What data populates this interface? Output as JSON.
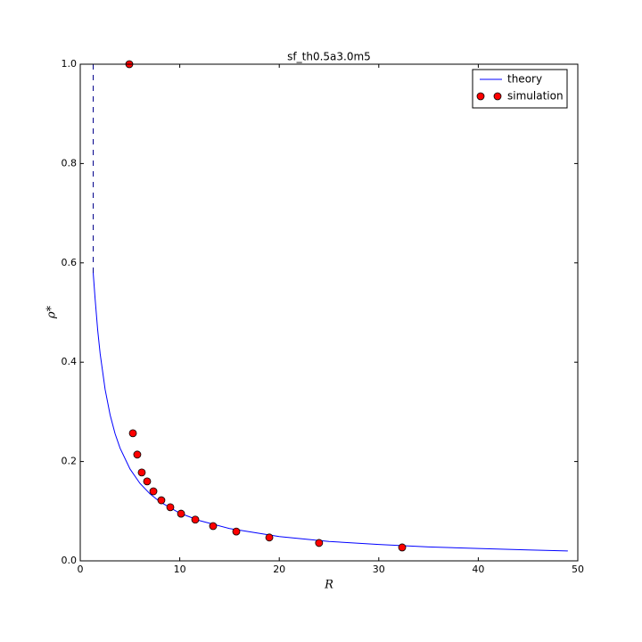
{
  "chart_data": {
    "type": "line",
    "title": "sf_th0.5a3.0m5",
    "x_label": "R",
    "y_label": "ρ*",
    "xlim": [
      0,
      50
    ],
    "ylim": [
      0,
      1.0
    ],
    "xticks": [
      0,
      10,
      20,
      30,
      40,
      50
    ],
    "yticks": [
      {
        "value": 0,
        "label": "0.0"
      },
      0.2,
      0.4,
      0.6,
      0.8,
      {
        "value": 1,
        "label": "1.0"
      }
    ],
    "legend": "upper right",
    "series": [
      {
        "name": "theory",
        "type": "line",
        "color": "#0000ff",
        "x": [
          1.3,
          1.5,
          1.75,
          2,
          2.5,
          3,
          3.5,
          4,
          5,
          6,
          7,
          8,
          10,
          12,
          15,
          20,
          25,
          30,
          35,
          40,
          45,
          49
        ],
        "values": [
          0.58,
          0.526,
          0.465,
          0.417,
          0.345,
          0.294,
          0.256,
          0.227,
          0.185,
          0.156,
          0.135,
          0.119,
          0.096,
          0.081,
          0.065,
          0.049,
          0.039,
          0.033,
          0.028,
          0.025,
          0.022,
          0.02
        ]
      },
      {
        "name": "simulation",
        "type": "scatter",
        "color": "#ff0000",
        "x": [
          4.93,
          5.29,
          5.73,
          6.18,
          6.72,
          7.35,
          8.15,
          9.05,
          10.13,
          11.56,
          13.35,
          15.68,
          19.0,
          24.0,
          32.35
        ],
        "values": [
          1.0,
          0.257,
          0.214,
          0.178,
          0.16,
          0.14,
          0.122,
          0.108,
          0.095,
          0.083,
          0.07,
          0.059,
          0.047,
          0.036,
          0.027
        ]
      }
    ],
    "extra_lines": [
      {
        "x": [
          1.3,
          1.3
        ],
        "values": [
          0.58,
          1.0
        ],
        "color": "#00008b",
        "linestyle": "dashed"
      }
    ]
  }
}
